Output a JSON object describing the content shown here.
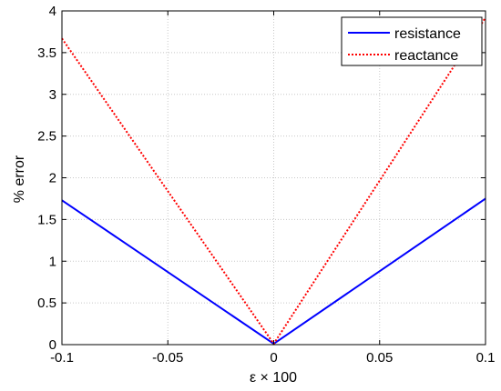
{
  "chart_data": {
    "type": "line",
    "title": "",
    "xlabel": "ε × 100",
    "ylabel": "% error",
    "xlim": [
      -0.1,
      0.1
    ],
    "ylim": [
      0,
      4
    ],
    "xticks": [
      "-0.1",
      "-0.05",
      "0",
      "0.05",
      "0.1"
    ],
    "yticks": [
      "0",
      "0.5",
      "1",
      "1.5",
      "2",
      "2.5",
      "3",
      "3.5",
      "4"
    ],
    "grid": true,
    "legend_position": "top-right",
    "series": [
      {
        "name": "resistance",
        "color": "#0000ff",
        "line_style": "solid",
        "x": [
          -0.1,
          0,
          0.1
        ],
        "y": [
          1.73,
          0.01,
          1.75
        ]
      },
      {
        "name": "reactance",
        "color": "#ff0000",
        "line_style": "dotted",
        "x": [
          -0.1,
          0,
          0.1
        ],
        "y": [
          3.67,
          0.01,
          3.92
        ]
      }
    ]
  }
}
